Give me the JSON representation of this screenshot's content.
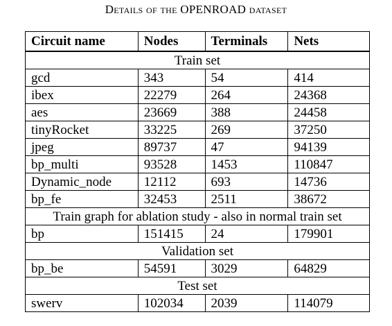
{
  "caption": "Details of the OPENROAD dataset",
  "table": {
    "headers": [
      "Circuit name",
      "Nodes",
      "Terminals",
      "Nets"
    ],
    "sections": [
      {
        "title": "Train set",
        "rows": [
          [
            "gcd",
            "343",
            "54",
            "414"
          ],
          [
            "ibex",
            "22279",
            "264",
            "24368"
          ],
          [
            "aes",
            "23669",
            "388",
            "24458"
          ],
          [
            "tinyRocket",
            "33225",
            "269",
            "37250"
          ],
          [
            "jpeg",
            "89737",
            "47",
            "94139"
          ],
          [
            "bp_multi",
            "93528",
            "1453",
            "110847"
          ],
          [
            "Dynamic_node",
            "12112",
            "693",
            "14736"
          ],
          [
            "bp_fe",
            "32453",
            "2511",
            "38672"
          ]
        ]
      },
      {
        "title": "Train graph for ablation study - also in normal train set",
        "rows": [
          [
            "bp",
            "151415",
            "24",
            "179901"
          ]
        ]
      },
      {
        "title": "Validation set",
        "rows": [
          [
            "bp_be",
            "54591",
            "3029",
            "64829"
          ]
        ]
      },
      {
        "title": "Test set",
        "rows": [
          [
            "swerv",
            "102034",
            "2039",
            "114079"
          ]
        ]
      }
    ]
  }
}
